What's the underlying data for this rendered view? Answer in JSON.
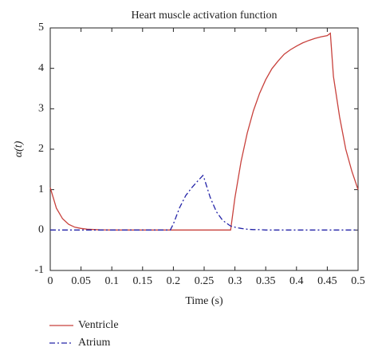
{
  "chart_data": {
    "type": "line",
    "title": "Heart muscle activation function",
    "x_label": "Time (s)",
    "y_label": "α(t)",
    "x": [
      0,
      0.01,
      0.02,
      0.03,
      0.04,
      0.05,
      0.06,
      0.08,
      0.1,
      0.15,
      0.195,
      0.2,
      0.21,
      0.22,
      0.23,
      0.24,
      0.248,
      0.25,
      0.26,
      0.27,
      0.28,
      0.29,
      0.293,
      0.3,
      0.31,
      0.32,
      0.33,
      0.34,
      0.35,
      0.36,
      0.37,
      0.38,
      0.39,
      0.4,
      0.41,
      0.42,
      0.43,
      0.44,
      0.45,
      0.455,
      0.46,
      0.47,
      0.48,
      0.49,
      0.5
    ],
    "series": [
      {
        "name": "Ventricle",
        "color": "#c8413c",
        "dash": "solid",
        "values": [
          1.05,
          0.54,
          0.28,
          0.14,
          0.07,
          0.04,
          0.02,
          0.005,
          0,
          0,
          0,
          0,
          0,
          0,
          0,
          0,
          0,
          0,
          0,
          0,
          0,
          0,
          0,
          0.8,
          1.7,
          2.4,
          2.95,
          3.38,
          3.72,
          3.99,
          4.18,
          4.35,
          4.46,
          4.55,
          4.63,
          4.69,
          4.74,
          4.78,
          4.81,
          4.87,
          3.8,
          2.8,
          2.0,
          1.45,
          1.0
        ]
      },
      {
        "name": "Atrium",
        "color": "#2424a8",
        "dash": "dashdot",
        "values": [
          0,
          0,
          0,
          0,
          0,
          0,
          0,
          0,
          0,
          0,
          0,
          0.15,
          0.55,
          0.85,
          1.05,
          1.22,
          1.35,
          1.28,
          0.8,
          0.45,
          0.24,
          0.13,
          0.1,
          0.07,
          0.04,
          0.02,
          0.01,
          0.01,
          0,
          0,
          0,
          0,
          0,
          0,
          0,
          0,
          0,
          0,
          0,
          0,
          0,
          0,
          0,
          0,
          0
        ]
      }
    ],
    "xlim": [
      0,
      0.5
    ],
    "ylim": [
      -1,
      5
    ],
    "xticks": [
      0,
      0.05,
      0.1,
      0.15,
      0.2,
      0.25,
      0.3,
      0.35,
      0.4,
      0.45,
      0.5
    ],
    "yticks": [
      -1,
      0,
      1,
      2,
      3,
      4,
      5
    ],
    "grid": false,
    "legend": "below-left"
  }
}
